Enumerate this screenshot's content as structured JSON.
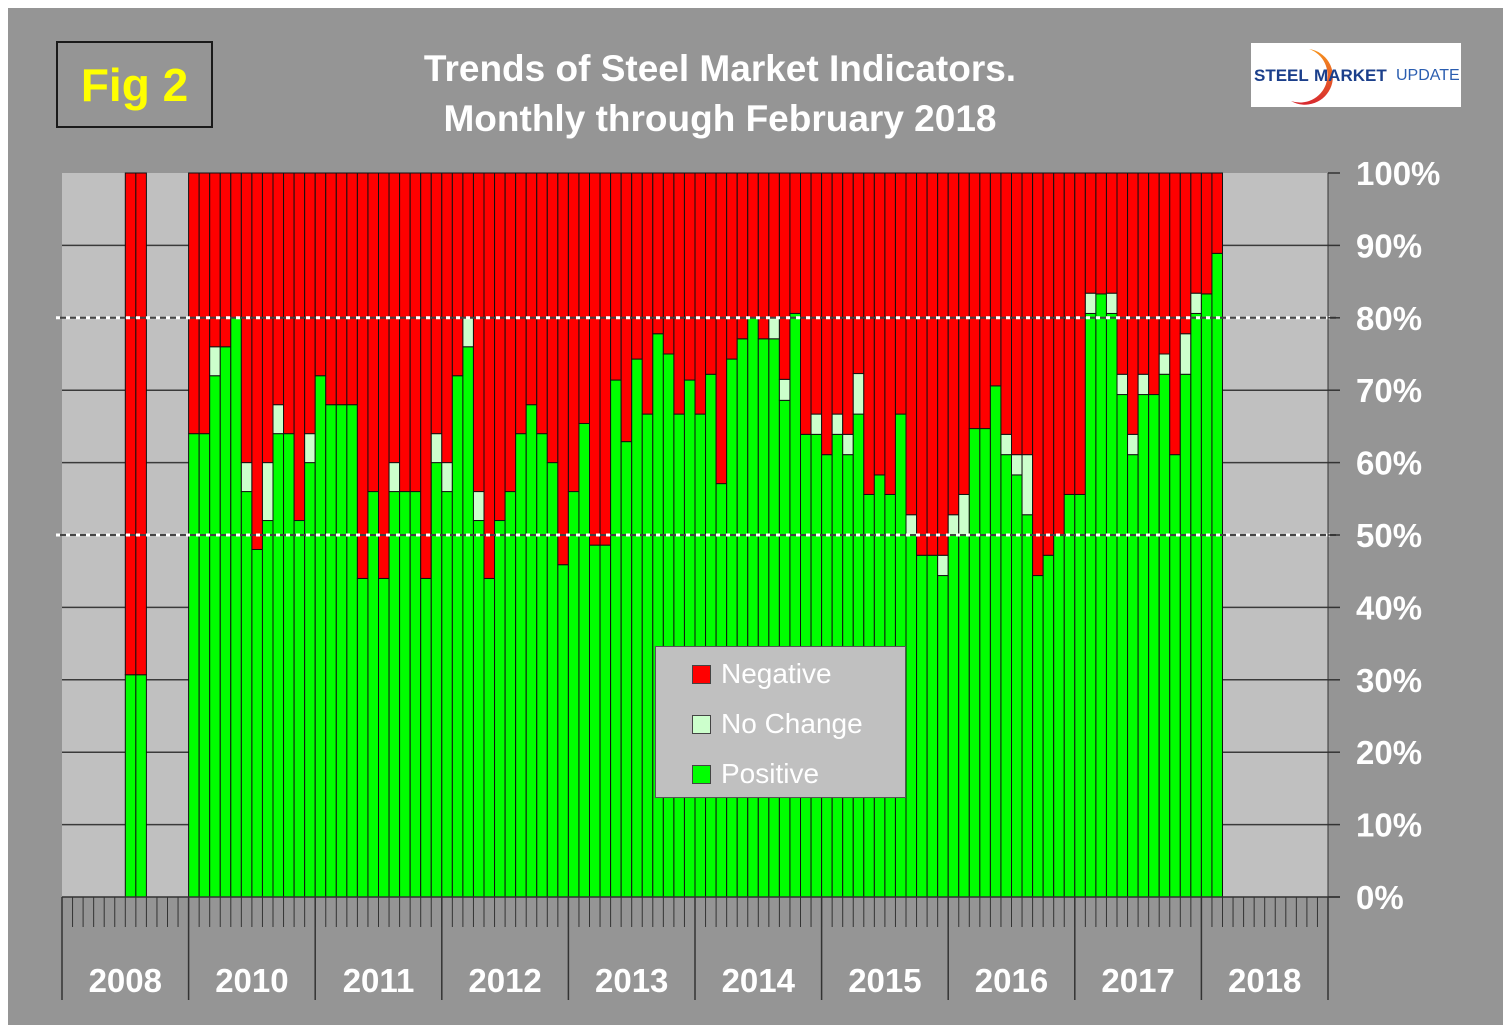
{
  "figure_label": "Fig 2",
  "title_line1": "Trends of Steel Market Indicators.",
  "title_line2": "Monthly through  February 2018",
  "logo": {
    "part1": "STEEL",
    "part2": "MARKET",
    "part3": "UPDATE"
  },
  "colors": {
    "negative": "#ff0000",
    "no_change": "#ccffcc",
    "positive": "#00ff00",
    "plot_bg": "#c0c0c0",
    "panel_bg": "#959595",
    "reference_line": "#ffffff"
  },
  "chart_data": {
    "type": "bar",
    "stacked": true,
    "title": "Trends of Steel Market Indicators. Monthly through  February 2018",
    "xlabel": "",
    "ylabel": "",
    "ylim": [
      0,
      100
    ],
    "y_ticks": [
      "0%",
      "10%",
      "20%",
      "30%",
      "40%",
      "50%",
      "60%",
      "70%",
      "80%",
      "90%",
      "100%"
    ],
    "x_groups": [
      "2008",
      "2010",
      "2011",
      "2012",
      "2013",
      "2014",
      "2015",
      "2016",
      "2017",
      "2018"
    ],
    "reference_lines": [
      50,
      80
    ],
    "grid": true,
    "legend": {
      "placement": "center-bottom",
      "entries": [
        "Negative",
        "No Change",
        "Positive"
      ]
    },
    "series_names": [
      "Positive",
      "No Change",
      "Negative"
    ],
    "months": [
      {
        "year": "2008",
        "month": 7,
        "positive": 30.7,
        "no_change": 0
      },
      {
        "year": "2008",
        "month": 8,
        "positive": 30.7,
        "no_change": 0
      },
      {
        "year": "2010",
        "month": 1,
        "positive": 64.0,
        "no_change": 0
      },
      {
        "year": "2010",
        "month": 2,
        "positive": 64.0,
        "no_change": 0
      },
      {
        "year": "2010",
        "month": 3,
        "positive": 72.0,
        "no_change": 4.0
      },
      {
        "year": "2010",
        "month": 4,
        "positive": 76.0,
        "no_change": 0
      },
      {
        "year": "2010",
        "month": 5,
        "positive": 80.0,
        "no_change": 0
      },
      {
        "year": "2010",
        "month": 6,
        "positive": 56.0,
        "no_change": 4.0
      },
      {
        "year": "2010",
        "month": 7,
        "positive": 48.0,
        "no_change": 0
      },
      {
        "year": "2010",
        "month": 8,
        "positive": 52.0,
        "no_change": 8.0
      },
      {
        "year": "2010",
        "month": 9,
        "positive": 64.0,
        "no_change": 4.0
      },
      {
        "year": "2010",
        "month": 10,
        "positive": 64.0,
        "no_change": 0
      },
      {
        "year": "2010",
        "month": 11,
        "positive": 52.0,
        "no_change": 0
      },
      {
        "year": "2010",
        "month": 12,
        "positive": 60.0,
        "no_change": 4.0
      },
      {
        "year": "2011",
        "month": 1,
        "positive": 72.0,
        "no_change": 0
      },
      {
        "year": "2011",
        "month": 2,
        "positive": 68.0,
        "no_change": 0
      },
      {
        "year": "2011",
        "month": 3,
        "positive": 68.0,
        "no_change": 0
      },
      {
        "year": "2011",
        "month": 4,
        "positive": 68.0,
        "no_change": 0
      },
      {
        "year": "2011",
        "month": 5,
        "positive": 44.0,
        "no_change": 0
      },
      {
        "year": "2011",
        "month": 6,
        "positive": 56.0,
        "no_change": 0
      },
      {
        "year": "2011",
        "month": 7,
        "positive": 44.0,
        "no_change": 0
      },
      {
        "year": "2011",
        "month": 8,
        "positive": 56.0,
        "no_change": 4.0
      },
      {
        "year": "2011",
        "month": 9,
        "positive": 56.0,
        "no_change": 0
      },
      {
        "year": "2011",
        "month": 10,
        "positive": 56.0,
        "no_change": 0
      },
      {
        "year": "2011",
        "month": 11,
        "positive": 44.0,
        "no_change": 0
      },
      {
        "year": "2011",
        "month": 12,
        "positive": 60.0,
        "no_change": 4.0
      },
      {
        "year": "2012",
        "month": 1,
        "positive": 56.0,
        "no_change": 4.0
      },
      {
        "year": "2012",
        "month": 2,
        "positive": 72.0,
        "no_change": 0
      },
      {
        "year": "2012",
        "month": 3,
        "positive": 76.0,
        "no_change": 4.0
      },
      {
        "year": "2012",
        "month": 4,
        "positive": 52.0,
        "no_change": 4.0
      },
      {
        "year": "2012",
        "month": 5,
        "positive": 44.0,
        "no_change": 0
      },
      {
        "year": "2012",
        "month": 6,
        "positive": 52.0,
        "no_change": 0
      },
      {
        "year": "2012",
        "month": 7,
        "positive": 56.0,
        "no_change": 0
      },
      {
        "year": "2012",
        "month": 8,
        "positive": 64.0,
        "no_change": 0
      },
      {
        "year": "2012",
        "month": 9,
        "positive": 68.0,
        "no_change": 0
      },
      {
        "year": "2012",
        "month": 10,
        "positive": 64.0,
        "no_change": 0
      },
      {
        "year": "2012",
        "month": 11,
        "positive": 60.0,
        "no_change": 0
      },
      {
        "year": "2012",
        "month": 12,
        "positive": 45.9,
        "no_change": 0
      },
      {
        "year": "2013",
        "month": 1,
        "positive": 56.0,
        "no_change": 0
      },
      {
        "year": "2013",
        "month": 2,
        "positive": 65.4,
        "no_change": 0
      },
      {
        "year": "2013",
        "month": 3,
        "positive": 48.6,
        "no_change": 0
      },
      {
        "year": "2013",
        "month": 4,
        "positive": 48.6,
        "no_change": 0
      },
      {
        "year": "2013",
        "month": 5,
        "positive": 71.4,
        "no_change": 0
      },
      {
        "year": "2013",
        "month": 6,
        "positive": 62.9,
        "no_change": 0
      },
      {
        "year": "2013",
        "month": 7,
        "positive": 74.3,
        "no_change": 0
      },
      {
        "year": "2013",
        "month": 8,
        "positive": 66.7,
        "no_change": 0
      },
      {
        "year": "2013",
        "month": 9,
        "positive": 77.8,
        "no_change": 0
      },
      {
        "year": "2013",
        "month": 10,
        "positive": 75.0,
        "no_change": 0
      },
      {
        "year": "2013",
        "month": 11,
        "positive": 66.7,
        "no_change": 0
      },
      {
        "year": "2013",
        "month": 12,
        "positive": 71.4,
        "no_change": 0
      },
      {
        "year": "2014",
        "month": 1,
        "positive": 66.7,
        "no_change": 0
      },
      {
        "year": "2014",
        "month": 2,
        "positive": 72.2,
        "no_change": 0
      },
      {
        "year": "2014",
        "month": 3,
        "positive": 57.1,
        "no_change": 0
      },
      {
        "year": "2014",
        "month": 4,
        "positive": 74.3,
        "no_change": 0
      },
      {
        "year": "2014",
        "month": 5,
        "positive": 77.1,
        "no_change": 0
      },
      {
        "year": "2014",
        "month": 6,
        "positive": 80.0,
        "no_change": 0
      },
      {
        "year": "2014",
        "month": 7,
        "positive": 77.1,
        "no_change": 0
      },
      {
        "year": "2014",
        "month": 8,
        "positive": 77.1,
        "no_change": 2.9
      },
      {
        "year": "2014",
        "month": 9,
        "positive": 68.6,
        "no_change": 2.9
      },
      {
        "year": "2014",
        "month": 10,
        "positive": 80.6,
        "no_change": 0
      },
      {
        "year": "2014",
        "month": 11,
        "positive": 63.9,
        "no_change": 0
      },
      {
        "year": "2014",
        "month": 12,
        "positive": 63.9,
        "no_change": 2.8
      },
      {
        "year": "2015",
        "month": 1,
        "positive": 61.1,
        "no_change": 0
      },
      {
        "year": "2015",
        "month": 2,
        "positive": 63.9,
        "no_change": 2.8
      },
      {
        "year": "2015",
        "month": 3,
        "positive": 61.1,
        "no_change": 2.8
      },
      {
        "year": "2015",
        "month": 4,
        "positive": 66.7,
        "no_change": 5.6
      },
      {
        "year": "2015",
        "month": 5,
        "positive": 55.6,
        "no_change": 0
      },
      {
        "year": "2015",
        "month": 6,
        "positive": 58.3,
        "no_change": 0
      },
      {
        "year": "2015",
        "month": 7,
        "positive": 55.6,
        "no_change": 0
      },
      {
        "year": "2015",
        "month": 8,
        "positive": 66.7,
        "no_change": 0
      },
      {
        "year": "2015",
        "month": 9,
        "positive": 50.0,
        "no_change": 2.8
      },
      {
        "year": "2015",
        "month": 10,
        "positive": 47.2,
        "no_change": 0
      },
      {
        "year": "2015",
        "month": 11,
        "positive": 47.2,
        "no_change": 0
      },
      {
        "year": "2015",
        "month": 12,
        "positive": 44.4,
        "no_change": 2.8
      },
      {
        "year": "2016",
        "month": 1,
        "positive": 50.0,
        "no_change": 2.8
      },
      {
        "year": "2016",
        "month": 2,
        "positive": 50.0,
        "no_change": 5.6
      },
      {
        "year": "2016",
        "month": 3,
        "positive": 64.7,
        "no_change": 0
      },
      {
        "year": "2016",
        "month": 4,
        "positive": 64.7,
        "no_change": 0
      },
      {
        "year": "2016",
        "month": 5,
        "positive": 70.6,
        "no_change": 0
      },
      {
        "year": "2016",
        "month": 6,
        "positive": 61.1,
        "no_change": 2.8
      },
      {
        "year": "2016",
        "month": 7,
        "positive": 58.3,
        "no_change": 2.8
      },
      {
        "year": "2016",
        "month": 8,
        "positive": 52.8,
        "no_change": 8.3
      },
      {
        "year": "2016",
        "month": 9,
        "positive": 44.4,
        "no_change": 0
      },
      {
        "year": "2016",
        "month": 10,
        "positive": 47.2,
        "no_change": 0
      },
      {
        "year": "2016",
        "month": 11,
        "positive": 50.0,
        "no_change": 0
      },
      {
        "year": "2016",
        "month": 12,
        "positive": 55.6,
        "no_change": 0
      },
      {
        "year": "2017",
        "month": 1,
        "positive": 55.6,
        "no_change": 0
      },
      {
        "year": "2017",
        "month": 2,
        "positive": 80.6,
        "no_change": 2.8
      },
      {
        "year": "2017",
        "month": 3,
        "positive": 83.3,
        "no_change": 0
      },
      {
        "year": "2017",
        "month": 4,
        "positive": 80.6,
        "no_change": 2.8
      },
      {
        "year": "2017",
        "month": 5,
        "positive": 69.4,
        "no_change": 2.8
      },
      {
        "year": "2017",
        "month": 6,
        "positive": 61.1,
        "no_change": 2.8
      },
      {
        "year": "2017",
        "month": 7,
        "positive": 69.4,
        "no_change": 2.8
      },
      {
        "year": "2017",
        "month": 8,
        "positive": 69.4,
        "no_change": 0
      },
      {
        "year": "2017",
        "month": 9,
        "positive": 72.2,
        "no_change": 2.8
      },
      {
        "year": "2017",
        "month": 10,
        "positive": 61.1,
        "no_change": 0
      },
      {
        "year": "2017",
        "month": 11,
        "positive": 72.2,
        "no_change": 5.6
      },
      {
        "year": "2017",
        "month": 12,
        "positive": 80.6,
        "no_change": 2.8
      },
      {
        "year": "2018",
        "month": 1,
        "positive": 83.3,
        "no_change": 0
      },
      {
        "year": "2018",
        "month": 2,
        "positive": 88.9,
        "no_change": 0
      }
    ]
  }
}
